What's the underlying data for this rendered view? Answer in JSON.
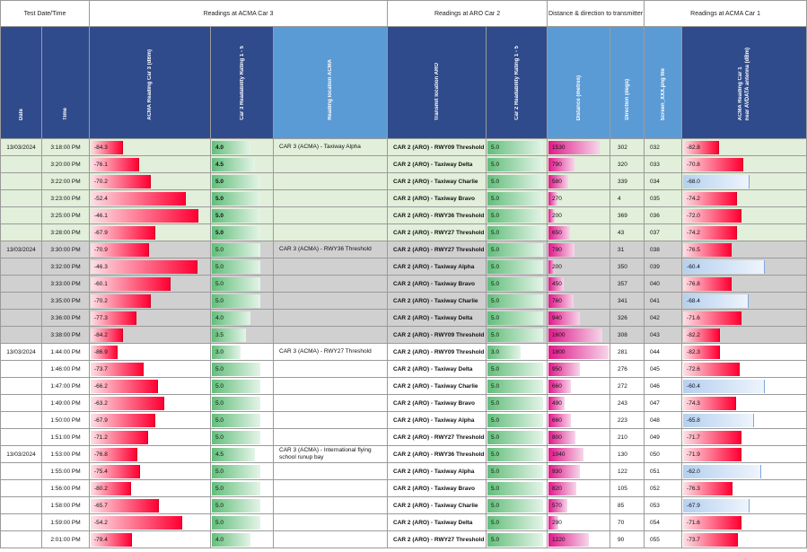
{
  "groups": {
    "test_datetime": "Test Date/Time",
    "car3": "Readings at ACMA Car 3",
    "car2": "Readings at ARO Car 2",
    "dist": "Distance & direction to transmitter",
    "car1": "Readings at ACMA Car 1"
  },
  "headers": {
    "date": "Date",
    "time": "Time",
    "acma3": "ACMA Reading Car 3 (dBm)",
    "rating3": "Car 3 Readability Rating 1 - 5",
    "loc3": "Reading location ACMA",
    "txloc": "Transmit location ARO",
    "rating2": "Car 2 Readability Rating 1 - 5",
    "distance": "Distance (metres)",
    "direction": "Direction (degs)",
    "screen": "Screen_XXX.png file",
    "acma1_line1": "ACMA Reading Car 1",
    "acma1_line2": "near AVDATA antenna (dBm)"
  },
  "colors": {
    "header_dark": "#2f4b8b",
    "header_light": "#5b9bd5",
    "row_green": "#e2efda",
    "row_grey": "#d0d0d0"
  },
  "rows": [
    {
      "date": "13/03/2024",
      "time": "3:18:00 PM",
      "acma3": "-84.3",
      "r3": "4.0",
      "r3b": true,
      "loc": "CAR 3 (ACMA) - Taxiway Alpha",
      "tx": "CAR 2 (ARO) - RWY09 Threshold",
      "r2": "5.0",
      "dist": "1530",
      "dir": "302",
      "scr": "032",
      "acma1": "-82.8",
      "band": "g"
    },
    {
      "date": "",
      "time": "3:20:00 PM",
      "acma3": "-76.1",
      "r3": "4.5",
      "r3b": true,
      "loc": "",
      "tx": "CAR 2 (ARO) - Taxiway Delta",
      "r2": "5.0",
      "dist": "790",
      "dir": "320",
      "scr": "033",
      "acma1": "-70.8",
      "band": "g"
    },
    {
      "date": "",
      "time": "3:22:00 PM",
      "acma3": "-70.2",
      "r3": "5.0",
      "r3b": true,
      "loc": "",
      "tx": "CAR 2 (ARO) - Taxiway Charlie",
      "r2": "5.0",
      "dist": "580",
      "dir": "339",
      "scr": "034",
      "acma1": "-68.0",
      "band": "g"
    },
    {
      "date": "",
      "time": "3:23:00 PM",
      "acma3": "-52.4",
      "r3": "5.0",
      "r3b": true,
      "loc": "",
      "tx": "CAR 2 (ARO) - Taxiway Bravo",
      "r2": "5.0",
      "dist": "270",
      "dir": "4",
      "scr": "035",
      "acma1": "-74.2",
      "band": "g"
    },
    {
      "date": "",
      "time": "3:25:00 PM",
      "acma3": "-46.1",
      "r3": "5.0",
      "r3b": true,
      "loc": "",
      "tx": "CAR 2 (ARO) - RWY36 Threshold",
      "r2": "5.0",
      "dist": "200",
      "dir": "369",
      "scr": "036",
      "acma1": "-72.0",
      "band": "g"
    },
    {
      "date": "",
      "time": "3:28:00 PM",
      "acma3": "-67.9",
      "r3": "5.0",
      "r3b": true,
      "loc": "",
      "tx": "CAR 2 (ARO) - RWY27 Threshold",
      "r2": "5.0",
      "dist": "650",
      "dir": "43",
      "scr": "037",
      "acma1": "-74.2",
      "band": "g"
    },
    {
      "date": "13/03/2024",
      "time": "3:30:00 PM",
      "acma3": "-70.9",
      "r3": "5.0",
      "r3b": false,
      "loc": "CAR 3 (ACMA) - RWY36 Threshold",
      "tx": "CAR 2 (ARO) - RWY27 Threshold",
      "r2": "5.0",
      "dist": "790",
      "dir": "31",
      "scr": "038",
      "acma1": "-76.5",
      "band": "s"
    },
    {
      "date": "",
      "time": "3:32:00 PM",
      "acma3": "-46.3",
      "r3": "5.0",
      "r3b": false,
      "loc": "",
      "tx": "CAR 2 (ARO) - Taxiway Alpha",
      "r2": "5.0",
      "dist": "200",
      "dir": "350",
      "scr": "039",
      "acma1": "-60.4",
      "band": "s"
    },
    {
      "date": "",
      "time": "3:33:00 PM",
      "acma3": "-60.1",
      "r3": "5.0",
      "r3b": false,
      "loc": "",
      "tx": "CAR 2 (ARO) - Taxiway Bravo",
      "r2": "5.0",
      "dist": "450",
      "dir": "357",
      "scr": "040",
      "acma1": "-76.8",
      "band": "s"
    },
    {
      "date": "",
      "time": "3:35:00 PM",
      "acma3": "-70.2",
      "r3": "5.0",
      "r3b": false,
      "loc": "",
      "tx": "CAR 2 (ARO) - Taxiway Charlie",
      "r2": "5.0",
      "dist": "760",
      "dir": "341",
      "scr": "041",
      "acma1": "-68.4",
      "band": "s"
    },
    {
      "date": "",
      "time": "3:36:00 PM",
      "acma3": "-77.3",
      "r3": "4.0",
      "r3b": false,
      "loc": "",
      "tx": "CAR 2 (ARO) - Taxiway Delta",
      "r2": "5.0",
      "dist": "940",
      "dir": "326",
      "scr": "042",
      "acma1": "-71.6",
      "band": "s"
    },
    {
      "date": "",
      "time": "3:38:00 PM",
      "acma3": "-84.2",
      "r3": "3.5",
      "r3b": false,
      "loc": "",
      "tx": "CAR 2 (ARO) - RWY09 Threshold",
      "r2": "5.0",
      "dist": "1600",
      "dir": "308",
      "scr": "043",
      "acma1": "-82.2",
      "band": "s"
    },
    {
      "date": "13/03/2024",
      "time": "1:44:00 PM",
      "acma3": "-86.9",
      "r3": "3.0",
      "r3b": false,
      "loc": "CAR 3 (ACMA) - RWY27 Threshold",
      "tx": "CAR 2 (ARO) - RWY09 Threshold",
      "r2": "3.0",
      "dist": "1800",
      "dir": "281",
      "scr": "044",
      "acma1": "-82.3",
      "band": "w"
    },
    {
      "date": "",
      "time": "1:46:00 PM",
      "acma3": "-73.7",
      "r3": "5.0",
      "r3b": false,
      "loc": "",
      "tx": "CAR 2 (ARO) - Taxiway Delta",
      "r2": "5.0",
      "dist": "950",
      "dir": "276",
      "scr": "045",
      "acma1": "-72.6",
      "band": "w"
    },
    {
      "date": "",
      "time": "1:47:00 PM",
      "acma3": "-66.2",
      "r3": "5.0",
      "r3b": false,
      "loc": "",
      "tx": "CAR 2 (ARO) - Taxiway Charlie",
      "r2": "5.0",
      "dist": "660",
      "dir": "272",
      "scr": "046",
      "acma1": "-60.4",
      "band": "w"
    },
    {
      "date": "",
      "time": "1:49:00 PM",
      "acma3": "-63.2",
      "r3": "5.0",
      "r3b": false,
      "loc": "",
      "tx": "CAR 2 (ARO) - Taxiway Bravo",
      "r2": "5.0",
      "dist": "490",
      "dir": "243",
      "scr": "047",
      "acma1": "-74.3",
      "band": "w"
    },
    {
      "date": "",
      "time": "1:50:00 PM",
      "acma3": "-67.9",
      "r3": "5.0",
      "r3b": false,
      "loc": "",
      "tx": "CAR 2 (ARO) - Taxiway Alpha",
      "r2": "5.0",
      "dist": "660",
      "dir": "223",
      "scr": "048",
      "acma1": "-65.8",
      "band": "w"
    },
    {
      "date": "",
      "time": "1:51:00 PM",
      "acma3": "-71.2",
      "r3": "5.0",
      "r3b": false,
      "loc": "",
      "tx": "CAR 2 (ARO) - RWY27 Threshold",
      "r2": "5.0",
      "dist": "800",
      "dir": "210",
      "scr": "049",
      "acma1": "-71.7",
      "band": "w"
    },
    {
      "date": "13/03/2024",
      "time": "1:53:00 PM",
      "acma3": "-76.8",
      "r3": "4.5",
      "r3b": false,
      "loc": "CAR 3 (ACMA) - International flying school runup bay",
      "tx": "CAR 2 (ARO) - RWY36 Threshold",
      "r2": "5.0",
      "dist": "1040",
      "dir": "130",
      "scr": "050",
      "acma1": "-71.9",
      "band": "w"
    },
    {
      "date": "",
      "time": "1:55:00 PM",
      "acma3": "-75.4",
      "r3": "5.0",
      "r3b": false,
      "loc": "",
      "tx": "CAR 2 (ARO) - Taxiway Alpha",
      "r2": "5.0",
      "dist": "930",
      "dir": "122",
      "scr": "051",
      "acma1": "-62.0",
      "band": "w"
    },
    {
      "date": "",
      "time": "1:56:00 PM",
      "acma3": "-80.2",
      "r3": "5.0",
      "r3b": false,
      "loc": "",
      "tx": "CAR 2 (ARO) - Taxiway Bravo",
      "r2": "5.0",
      "dist": "820",
      "dir": "105",
      "scr": "052",
      "acma1": "-76.3",
      "band": "w"
    },
    {
      "date": "",
      "time": "1:58:00 PM",
      "acma3": "-65.7",
      "r3": "5.0",
      "r3b": false,
      "loc": "",
      "tx": "CAR 2 (ARO) - Taxiway Charlie",
      "r2": "5.0",
      "dist": "570",
      "dir": "85",
      "scr": "053",
      "acma1": "-67.9",
      "band": "w"
    },
    {
      "date": "",
      "time": "1:59:00 PM",
      "acma3": "-54.2",
      "r3": "5.0",
      "r3b": false,
      "loc": "",
      "tx": "CAR 2 (ARO) - Taxiway Delta",
      "r2": "5.0",
      "dist": "290",
      "dir": "70",
      "scr": "054",
      "acma1": "-71.6",
      "band": "w"
    },
    {
      "date": "",
      "time": "2:01:00 PM",
      "acma3": "-79.4",
      "r3": "4.0",
      "r3b": false,
      "loc": "",
      "tx": "CAR 2 (ARO) - RWY27 Threshold",
      "r2": "5.0",
      "dist": "1220",
      "dir": "90",
      "scr": "055",
      "acma1": "-73.7",
      "band": "w"
    }
  ]
}
